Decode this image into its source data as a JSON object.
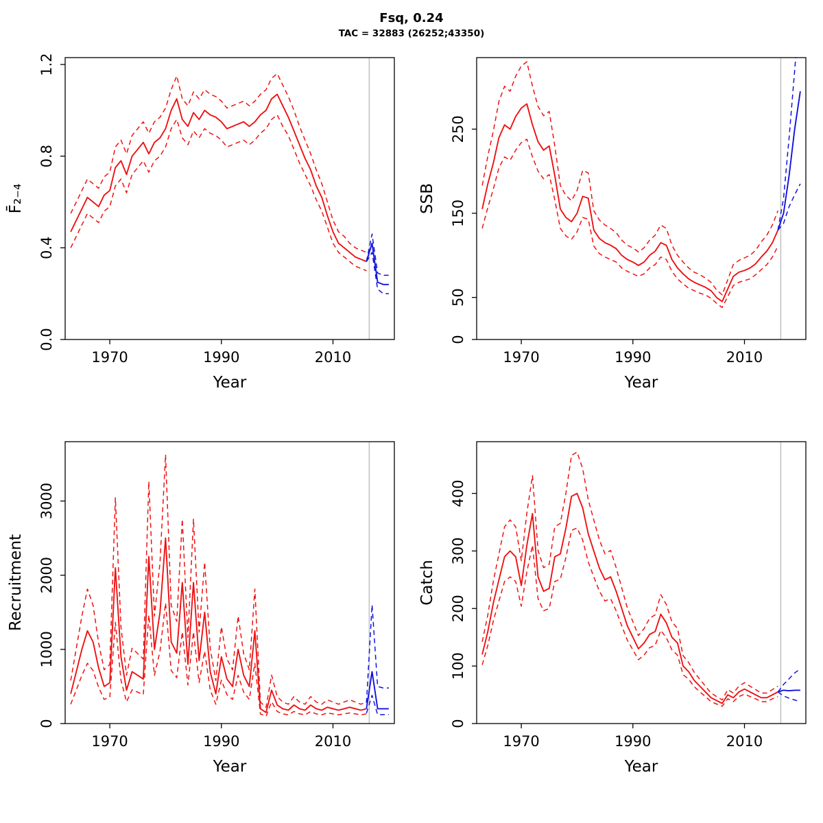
{
  "header": {
    "title": "Fsq, 0.24",
    "subtitle": "TAC = 32883 (26252;43350)"
  },
  "colors": {
    "historical": "#ee1111",
    "forecast": "#1111dd",
    "vline": "#c3c3c3",
    "axis": "#000000",
    "text": "#000000"
  },
  "chart_data": [
    {
      "id": "fbar",
      "type": "line",
      "title": "",
      "xlabel": "Year",
      "ylabel": "F̄₂₋₄",
      "xlim": [
        1962,
        2021
      ],
      "ylim": [
        0,
        1.23
      ],
      "xticks": [
        1970,
        1990,
        2010
      ],
      "yticks": [
        0,
        0.4,
        0.8,
        1.2
      ],
      "ytick_labels": [
        "0.0",
        "0.4",
        "0.8",
        "1.2"
      ],
      "vline": 2016.5,
      "grid": false,
      "legend": "none",
      "series": [
        {
          "name": "fbar-estimate",
          "role": "historical",
          "style": "solid",
          "x_start": 1963,
          "values": [
            0.47,
            0.52,
            0.57,
            0.62,
            0.6,
            0.58,
            0.63,
            0.65,
            0.75,
            0.78,
            0.72,
            0.8,
            0.83,
            0.86,
            0.81,
            0.86,
            0.88,
            0.92,
            1.0,
            1.05,
            0.96,
            0.93,
            0.99,
            0.96,
            1.0,
            0.98,
            0.97,
            0.95,
            0.92,
            0.93,
            0.94,
            0.95,
            0.93,
            0.95,
            0.98,
            1.0,
            1.05,
            1.07,
            1.02,
            0.97,
            0.91,
            0.85,
            0.79,
            0.74,
            0.67,
            0.62,
            0.54,
            0.47,
            0.42,
            0.4,
            0.38,
            0.36,
            0.35,
            0.34
          ]
        },
        {
          "name": "fbar-lower-ci",
          "role": "historical",
          "style": "dashed",
          "x_start": 1963,
          "values": [
            0.4,
            0.45,
            0.5,
            0.55,
            0.53,
            0.51,
            0.56,
            0.58,
            0.67,
            0.7,
            0.64,
            0.72,
            0.75,
            0.78,
            0.73,
            0.78,
            0.8,
            0.84,
            0.92,
            0.96,
            0.88,
            0.85,
            0.91,
            0.88,
            0.92,
            0.9,
            0.89,
            0.87,
            0.84,
            0.85,
            0.86,
            0.87,
            0.85,
            0.87,
            0.9,
            0.92,
            0.96,
            0.98,
            0.93,
            0.89,
            0.83,
            0.77,
            0.72,
            0.67,
            0.61,
            0.56,
            0.49,
            0.42,
            0.38,
            0.36,
            0.34,
            0.32,
            0.31,
            0.3
          ]
        },
        {
          "name": "fbar-upper-ci",
          "role": "historical",
          "style": "dashed",
          "x_start": 1963,
          "values": [
            0.55,
            0.6,
            0.65,
            0.7,
            0.68,
            0.66,
            0.71,
            0.73,
            0.84,
            0.87,
            0.81,
            0.89,
            0.92,
            0.95,
            0.9,
            0.95,
            0.97,
            1.01,
            1.09,
            1.15,
            1.05,
            1.02,
            1.08,
            1.05,
            1.09,
            1.07,
            1.06,
            1.04,
            1.01,
            1.02,
            1.03,
            1.04,
            1.02,
            1.04,
            1.07,
            1.09,
            1.14,
            1.16,
            1.11,
            1.06,
            1.0,
            0.93,
            0.87,
            0.81,
            0.74,
            0.68,
            0.6,
            0.52,
            0.47,
            0.45,
            0.42,
            0.4,
            0.39,
            0.38
          ]
        },
        {
          "name": "fbar-forecast",
          "role": "forecast",
          "style": "solid",
          "x_start": 2016,
          "values": [
            0.34,
            0.42,
            0.25,
            0.24,
            0.24
          ]
        },
        {
          "name": "fbar-forecast-lower-ci",
          "role": "forecast",
          "style": "dashed",
          "x_start": 2016,
          "values": [
            0.34,
            0.38,
            0.22,
            0.2,
            0.2
          ]
        },
        {
          "name": "fbar-forecast-upper-ci",
          "role": "forecast",
          "style": "dashed",
          "x_start": 2016,
          "values": [
            0.34,
            0.46,
            0.29,
            0.28,
            0.28
          ]
        }
      ]
    },
    {
      "id": "ssb",
      "type": "line",
      "title": "",
      "xlabel": "Year",
      "ylabel": "SSB",
      "xlim": [
        1962,
        2021
      ],
      "ylim": [
        0,
        335
      ],
      "xticks": [
        1970,
        1990,
        2010
      ],
      "yticks": [
        0,
        50,
        150,
        250
      ],
      "ytick_labels": [
        "0",
        "50",
        "150",
        "250"
      ],
      "vline": 2016.5,
      "grid": false,
      "legend": "none",
      "series": [
        {
          "name": "ssb-estimate",
          "role": "historical",
          "style": "solid",
          "x_start": 1963,
          "values": [
            155,
            185,
            210,
            240,
            255,
            250,
            265,
            275,
            280,
            255,
            235,
            225,
            230,
            195,
            155,
            145,
            140,
            150,
            170,
            168,
            130,
            120,
            115,
            112,
            108,
            100,
            95,
            92,
            88,
            92,
            100,
            105,
            115,
            112,
            95,
            85,
            78,
            72,
            68,
            65,
            62,
            58,
            50,
            45,
            60,
            75,
            80,
            82,
            85,
            90,
            98,
            105,
            115,
            130
          ]
        },
        {
          "name": "ssb-lower-ci",
          "role": "historical",
          "style": "dashed",
          "x_start": 1963,
          "values": [
            132,
            157,
            179,
            204,
            217,
            213,
            225,
            234,
            238,
            217,
            200,
            191,
            196,
            166,
            132,
            123,
            119,
            128,
            145,
            143,
            111,
            102,
            98,
            95,
            92,
            85,
            81,
            78,
            75,
            78,
            85,
            89,
            98,
            95,
            81,
            72,
            66,
            61,
            58,
            55,
            53,
            49,
            43,
            38,
            51,
            64,
            68,
            70,
            72,
            77,
            83,
            89,
            98,
            111
          ]
        },
        {
          "name": "ssb-upper-ci",
          "role": "historical",
          "style": "dashed",
          "x_start": 1963,
          "values": [
            183,
            218,
            248,
            283,
            301,
            295,
            313,
            325,
            330,
            301,
            277,
            266,
            271,
            230,
            183,
            171,
            165,
            177,
            201,
            198,
            153,
            142,
            136,
            132,
            127,
            118,
            112,
            109,
            104,
            109,
            118,
            124,
            136,
            132,
            112,
            100,
            92,
            85,
            80,
            77,
            73,
            68,
            59,
            53,
            71,
            89,
            94,
            97,
            100,
            106,
            116,
            124,
            136,
            153
          ]
        },
        {
          "name": "ssb-forecast",
          "role": "forecast",
          "style": "solid",
          "x_start": 2016,
          "values": [
            130,
            150,
            195,
            250,
            295
          ]
        },
        {
          "name": "ssb-forecast-lower-ci",
          "role": "forecast",
          "style": "dashed",
          "x_start": 2016,
          "values": [
            130,
            138,
            158,
            172,
            185
          ]
        },
        {
          "name": "ssb-forecast-upper-ci",
          "role": "forecast",
          "style": "dashed",
          "x_start": 2016,
          "values": [
            130,
            168,
            240,
            320,
            400
          ]
        }
      ]
    },
    {
      "id": "recruitment",
      "type": "line",
      "title": "",
      "xlabel": "Year",
      "ylabel": "Recruitment",
      "xlim": [
        1962,
        2021
      ],
      "ylim": [
        0,
        3800
      ],
      "xticks": [
        1970,
        1990,
        2010
      ],
      "yticks": [
        0,
        1000,
        2000,
        3000
      ],
      "ytick_labels": [
        "0",
        "1000",
        "2000",
        "3000"
      ],
      "vline": 2016.5,
      "grid": false,
      "legend": "none",
      "series": [
        {
          "name": "recruitment-estimate",
          "role": "historical",
          "style": "solid",
          "x_start": 1963,
          "values": [
            400,
            700,
            1000,
            1250,
            1100,
            750,
            500,
            550,
            2100,
            900,
            450,
            700,
            650,
            600,
            2250,
            1000,
            1500,
            2500,
            1100,
            950,
            1900,
            800,
            1900,
            850,
            1500,
            700,
            400,
            900,
            600,
            500,
            1000,
            650,
            500,
            1250,
            200,
            150,
            450,
            250,
            200,
            180,
            250,
            200,
            180,
            250,
            200,
            180,
            220,
            200,
            180,
            200,
            220,
            200,
            180,
            200
          ]
        },
        {
          "name": "recruitment-lower-ci",
          "role": "historical",
          "style": "dashed",
          "x_start": 1963,
          "values": [
            260,
            455,
            650,
            813,
            715,
            488,
            325,
            358,
            1365,
            585,
            293,
            455,
            423,
            390,
            1463,
            650,
            975,
            1625,
            715,
            618,
            1235,
            520,
            1235,
            553,
            975,
            455,
            260,
            585,
            390,
            325,
            650,
            423,
            325,
            813,
            130,
            98,
            293,
            163,
            130,
            117,
            163,
            130,
            117,
            163,
            130,
            117,
            143,
            130,
            117,
            130,
            143,
            130,
            117,
            130
          ]
        },
        {
          "name": "recruitment-upper-ci",
          "role": "historical",
          "style": "dashed",
          "x_start": 1963,
          "values": [
            580,
            1015,
            1450,
            1813,
            1595,
            1088,
            725,
            798,
            3045,
            1305,
            653,
            1015,
            943,
            870,
            3263,
            1450,
            2175,
            3625,
            1595,
            1378,
            2755,
            1160,
            2755,
            1233,
            2175,
            1015,
            580,
            1305,
            870,
            725,
            1450,
            943,
            725,
            1813,
            290,
            218,
            653,
            363,
            290,
            261,
            363,
            290,
            261,
            363,
            290,
            261,
            319,
            290,
            261,
            290,
            319,
            290,
            261,
            290
          ]
        },
        {
          "name": "recruitment-forecast",
          "role": "forecast",
          "style": "solid",
          "x_start": 2016,
          "values": [
            200,
            700,
            200,
            200,
            200
          ]
        },
        {
          "name": "recruitment-forecast-lower-ci",
          "role": "forecast",
          "style": "dashed",
          "x_start": 2016,
          "values": [
            140,
            380,
            120,
            120,
            120
          ]
        },
        {
          "name": "recruitment-forecast-upper-ci",
          "role": "forecast",
          "style": "dashed",
          "x_start": 2016,
          "values": [
            280,
            1600,
            500,
            480,
            480
          ]
        }
      ]
    },
    {
      "id": "catch",
      "type": "line",
      "title": "",
      "xlabel": "Year",
      "ylabel": "Catch",
      "xlim": [
        1962,
        2021
      ],
      "ylim": [
        0,
        490
      ],
      "xticks": [
        1970,
        1990,
        2010
      ],
      "yticks": [
        0,
        100,
        200,
        300,
        400
      ],
      "ytick_labels": [
        "0",
        "100",
        "200",
        "300",
        "400"
      ],
      "vline": 2016.5,
      "grid": false,
      "legend": "none",
      "series": [
        {
          "name": "catch-estimate",
          "role": "historical",
          "style": "solid",
          "x_start": 1963,
          "values": [
            120,
            160,
            210,
            250,
            290,
            300,
            290,
            240,
            310,
            365,
            255,
            230,
            235,
            290,
            295,
            340,
            395,
            400,
            375,
            330,
            300,
            270,
            250,
            255,
            230,
            200,
            170,
            150,
            130,
            140,
            155,
            160,
            190,
            175,
            150,
            140,
            100,
            90,
            75,
            65,
            55,
            45,
            40,
            35,
            50,
            45,
            55,
            60,
            55,
            50,
            45,
            45,
            50,
            55
          ]
        },
        {
          "name": "catch-lower-ci",
          "role": "historical",
          "style": "dashed",
          "x_start": 1963,
          "values": [
            102,
            136,
            179,
            213,
            247,
            255,
            247,
            204,
            264,
            310,
            217,
            196,
            200,
            247,
            251,
            289,
            336,
            340,
            319,
            281,
            255,
            230,
            213,
            217,
            196,
            170,
            145,
            128,
            111,
            119,
            132,
            136,
            162,
            149,
            128,
            119,
            85,
            77,
            64,
            55,
            47,
            38,
            34,
            30,
            43,
            38,
            47,
            51,
            47,
            43,
            38,
            38,
            43,
            47
          ]
        },
        {
          "name": "catch-upper-ci",
          "role": "historical",
          "style": "dashed",
          "x_start": 1963,
          "values": [
            142,
            189,
            248,
            295,
            342,
            354,
            342,
            283,
            366,
            431,
            301,
            271,
            277,
            342,
            348,
            401,
            466,
            472,
            443,
            389,
            354,
            319,
            295,
            301,
            271,
            236,
            201,
            177,
            153,
            165,
            183,
            189,
            224,
            207,
            177,
            165,
            118,
            106,
            89,
            77,
            65,
            53,
            47,
            41,
            59,
            53,
            65,
            71,
            65,
            59,
            53,
            53,
            59,
            65
          ]
        },
        {
          "name": "catch-forecast",
          "role": "forecast",
          "style": "solid",
          "x_start": 2016,
          "values": [
            55,
            58,
            57,
            58,
            58
          ]
        },
        {
          "name": "catch-forecast-lower-ci",
          "role": "forecast",
          "style": "dashed",
          "x_start": 2016,
          "values": [
            55,
            48,
            44,
            41,
            38
          ]
        },
        {
          "name": "catch-forecast-upper-ci",
          "role": "forecast",
          "style": "dashed",
          "x_start": 2016,
          "values": [
            55,
            68,
            78,
            88,
            95
          ]
        }
      ]
    }
  ]
}
